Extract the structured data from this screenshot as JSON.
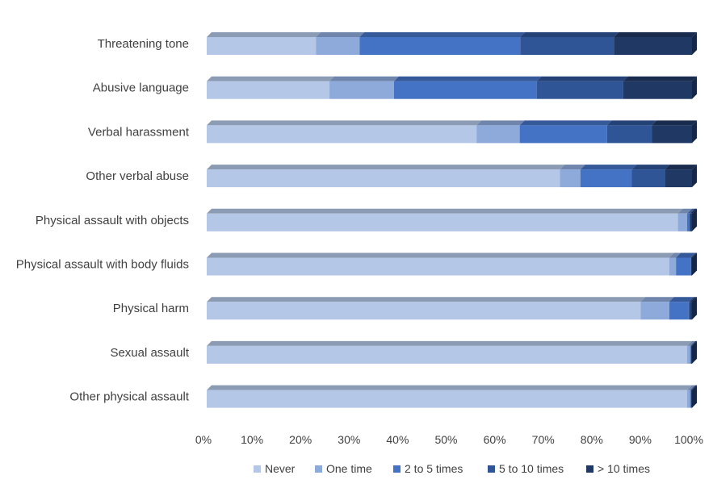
{
  "chart_data": {
    "type": "bar",
    "orientation": "horizontal",
    "stacked": "percent",
    "title": "",
    "xlabel": "",
    "ylabel": "",
    "xlim": [
      0,
      100
    ],
    "x_ticks": [
      "0%",
      "10%",
      "20%",
      "30%",
      "40%",
      "50%",
      "60%",
      "70%",
      "80%",
      "90%",
      "100%"
    ],
    "grid": false,
    "legend_position": "bottom",
    "categories": [
      "Threatening tone",
      "Abusive language",
      "Verbal harassment",
      "Other verbal abuse",
      "Physical assault with objects",
      "Physical assault with body fluids",
      "Physical harm",
      "Sexual assault",
      "Other physical assault"
    ],
    "series": [
      {
        "name": "Never",
        "color": "#b4c7e7",
        "values": [
          22.5,
          25.3,
          55.6,
          72.8,
          97.1,
          95.3,
          89.4,
          99.0,
          99.0
        ]
      },
      {
        "name": "One time",
        "color": "#8eaadb",
        "values": [
          9.0,
          13.3,
          8.9,
          4.2,
          1.9,
          1.4,
          5.9,
          0.6,
          0.6
        ]
      },
      {
        "name": "2 to 5 times",
        "color": "#4472c4",
        "values": [
          33.1,
          29.4,
          18.0,
          10.6,
          0.5,
          3.0,
          4.0,
          0.1,
          0.1
        ]
      },
      {
        "name": "5 to 10 times",
        "color": "#2f5597",
        "values": [
          19.3,
          17.8,
          9.2,
          6.8,
          0.1,
          0.1,
          0.3,
          0.1,
          0.1
        ]
      },
      {
        "name": "> 10 times",
        "color": "#203864",
        "values": [
          16.1,
          14.2,
          8.3,
          5.6,
          0.4,
          0.2,
          0.4,
          0.2,
          0.2
        ]
      }
    ]
  }
}
